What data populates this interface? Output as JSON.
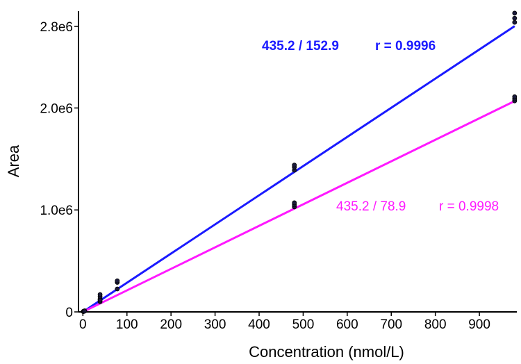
{
  "chart_data": {
    "type": "scatter",
    "title": "",
    "xlabel": "Concentration (nmol/L)",
    "ylabel": "Area",
    "xlim": [
      -10,
      985
    ],
    "ylim": [
      0,
      2950000
    ],
    "x_ticks": [
      {
        "value": 0,
        "label": "0"
      },
      {
        "value": 100,
        "label": "100"
      },
      {
        "value": 200,
        "label": "200"
      },
      {
        "value": 300,
        "label": "300"
      },
      {
        "value": 400,
        "label": "400"
      },
      {
        "value": 500,
        "label": "500"
      },
      {
        "value": 600,
        "label": "600"
      },
      {
        "value": 700,
        "label": "700"
      },
      {
        "value": 800,
        "label": "800"
      },
      {
        "value": 900,
        "label": "900"
      }
    ],
    "y_ticks": [
      {
        "value": 0,
        "label": "0"
      },
      {
        "value": 1000000,
        "label": "1.0e6"
      },
      {
        "value": 2000000,
        "label": "2.0e6"
      },
      {
        "value": 2800000,
        "label": "2.8e6"
      }
    ],
    "series": [
      {
        "name": "435.2 / 152.9",
        "color": "#1a1aff",
        "bold": true,
        "r_label": "r = 0.9996",
        "fit": {
          "slope": 2860,
          "intercept": 0,
          "x_range": [
            0,
            980
          ]
        },
        "points": [
          {
            "x": 1,
            "y": 5000
          },
          {
            "x": 2,
            "y": 7000
          },
          {
            "x": 4,
            "y": 11000
          },
          {
            "x": 39,
            "y": 125000
          },
          {
            "x": 39,
            "y": 150000
          },
          {
            "x": 39,
            "y": 170000
          },
          {
            "x": 78,
            "y": 290000
          },
          {
            "x": 78,
            "y": 305000
          },
          {
            "x": 480,
            "y": 1390000
          },
          {
            "x": 480,
            "y": 1420000
          },
          {
            "x": 480,
            "y": 1440000
          },
          {
            "x": 980,
            "y": 2840000
          },
          {
            "x": 980,
            "y": 2880000
          },
          {
            "x": 980,
            "y": 2930000
          }
        ]
      },
      {
        "name": "435.2 / 78.9",
        "color": "#ff19ff",
        "bold": false,
        "r_label": "r = 0.9998",
        "fit": {
          "slope": 2110,
          "intercept": 0,
          "x_range": [
            0,
            980
          ]
        },
        "points": [
          {
            "x": 1,
            "y": 3000
          },
          {
            "x": 2,
            "y": 5000
          },
          {
            "x": 4,
            "y": 8000
          },
          {
            "x": 39,
            "y": 100000
          },
          {
            "x": 39,
            "y": 115000
          },
          {
            "x": 78,
            "y": 225000
          },
          {
            "x": 480,
            "y": 1030000
          },
          {
            "x": 480,
            "y": 1050000
          },
          {
            "x": 480,
            "y": 1070000
          },
          {
            "x": 980,
            "y": 2070000
          },
          {
            "x": 980,
            "y": 2090000
          },
          {
            "x": 980,
            "y": 2110000
          }
        ]
      }
    ]
  }
}
